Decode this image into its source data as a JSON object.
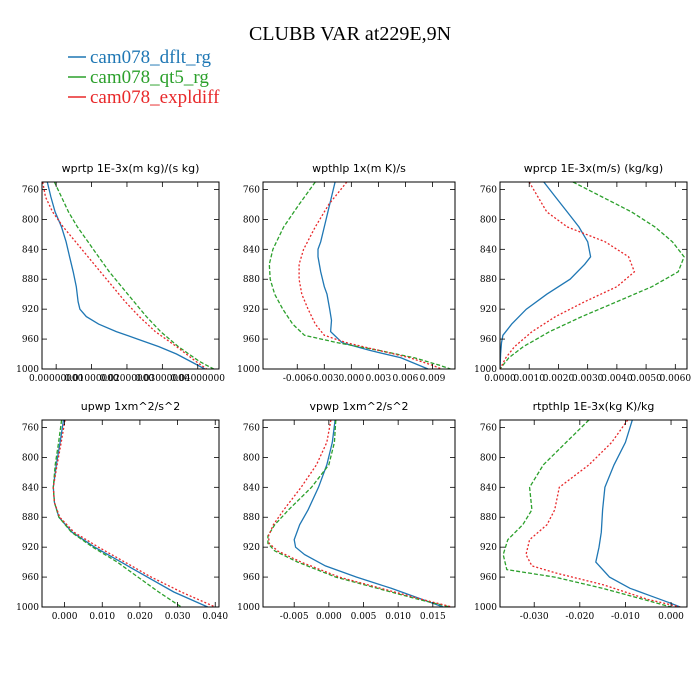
{
  "figure_title": "CLUBB VAR at229E,9N",
  "legend": [
    {
      "label": "cam078_dflt_rg",
      "color": "#1f77b4"
    },
    {
      "label": "cam078_qt5_rg",
      "color": "#2ca02c"
    },
    {
      "label": "cam078_expldiff",
      "color": "#e8282a"
    }
  ],
  "chart_data": [
    {
      "type": "line",
      "title": "wprtp  1E-3x(m kg)/(s kg)",
      "xlim": [
        -0.004,
        0.046
      ],
      "ylim": [
        1000,
        750
      ],
      "y_ticks": [
        760,
        800,
        840,
        880,
        920,
        960,
        1000
      ],
      "x_ticks": [
        {
          "v": 0.0,
          "label": "0.00000000"
        },
        {
          "v": 0.01,
          "label": "0.01000000"
        },
        {
          "v": 0.02,
          "label": "0.02000000"
        },
        {
          "v": 0.03,
          "label": "0.03000000"
        },
        {
          "v": 0.04,
          "label": "0.04000000"
        }
      ],
      "series": [
        {
          "name": "cam078_dflt_rg",
          "p": [
            750,
            770,
            790,
            810,
            830,
            850,
            870,
            890,
            910,
            920,
            930,
            940,
            950,
            960,
            970,
            980,
            990,
            1000
          ],
          "x": [
            -0.0025,
            -0.0015,
            -0.0003,
            0.0015,
            0.0028,
            0.0038,
            0.0048,
            0.0057,
            0.0062,
            0.0067,
            0.0085,
            0.012,
            0.017,
            0.023,
            0.029,
            0.034,
            0.038,
            0.042
          ]
        },
        {
          "name": "cam078_qt5_rg",
          "p": [
            750,
            770,
            790,
            810,
            830,
            850,
            870,
            890,
            910,
            930,
            950,
            970,
            990,
            1000
          ],
          "x": [
            -0.0005,
            0.0015,
            0.0035,
            0.006,
            0.009,
            0.012,
            0.015,
            0.0185,
            0.022,
            0.0255,
            0.0295,
            0.0345,
            0.0405,
            0.0445
          ]
        },
        {
          "name": "cam078_expldiff",
          "p": [
            750,
            770,
            790,
            810,
            830,
            850,
            870,
            890,
            910,
            930,
            950,
            970,
            990,
            1000
          ],
          "x": [
            -0.0038,
            -0.003,
            -0.001,
            0.002,
            0.0055,
            0.009,
            0.0125,
            0.016,
            0.0195,
            0.0235,
            0.028,
            0.034,
            0.0395,
            0.0425
          ]
        }
      ]
    },
    {
      "type": "line",
      "title": "wpthlp  1x(m K)/s",
      "xlim": [
        -0.0098,
        0.0115
      ],
      "ylim": [
        1000,
        750
      ],
      "y_ticks": [
        760,
        800,
        840,
        880,
        920,
        960,
        1000
      ],
      "x_ticks": [
        {
          "v": -0.006,
          "label": "-0.006"
        },
        {
          "v": -0.003,
          "label": "-0.003"
        },
        {
          "v": 0.0,
          "label": "0.000"
        },
        {
          "v": 0.003,
          "label": "0.003"
        },
        {
          "v": 0.006,
          "label": "0.006"
        },
        {
          "v": 0.009,
          "label": "0.009"
        }
      ],
      "series": [
        {
          "name": "cam078_dflt_rg",
          "p": [
            750,
            780,
            810,
            830,
            840,
            850,
            870,
            890,
            900,
            920,
            935,
            950,
            965,
            975,
            985,
            1000
          ],
          "x": [
            -0.0018,
            -0.0024,
            -0.003,
            -0.0034,
            -0.0037,
            -0.0037,
            -0.0034,
            -0.003,
            -0.0027,
            -0.0024,
            -0.0022,
            -0.0023,
            -0.001,
            0.002,
            0.0055,
            0.0085
          ]
        },
        {
          "name": "cam078_qt5_rg",
          "p": [
            750,
            780,
            810,
            840,
            860,
            880,
            900,
            920,
            940,
            955,
            965,
            975,
            985,
            995,
            1000
          ],
          "x": [
            -0.004,
            -0.0058,
            -0.0075,
            -0.0087,
            -0.0091,
            -0.009,
            -0.0085,
            -0.0076,
            -0.0065,
            -0.0052,
            -0.0015,
            0.003,
            0.007,
            0.0098,
            0.011
          ]
        },
        {
          "name": "cam078_expldiff",
          "p": [
            750,
            780,
            810,
            840,
            860,
            880,
            900,
            920,
            940,
            955,
            965,
            975,
            985,
            995,
            1000
          ],
          "x": [
            -0.0005,
            -0.0025,
            -0.004,
            -0.0053,
            -0.0058,
            -0.0058,
            -0.0055,
            -0.0048,
            -0.004,
            -0.003,
            -0.0005,
            0.003,
            0.0065,
            0.009,
            0.01
          ]
        }
      ]
    },
    {
      "type": "line",
      "title": "wprcp  1E-3x(m/s) (kg/kg)",
      "xlim": [
        0,
        0.0064
      ],
      "ylim": [
        1000,
        750
      ],
      "y_ticks": [
        760,
        800,
        840,
        880,
        920,
        960,
        1000
      ],
      "x_ticks": [
        {
          "v": 0,
          "label": "0.0000"
        },
        {
          "v": 0.001,
          "label": "0.0010"
        },
        {
          "v": 0.002,
          "label": "0.0020"
        },
        {
          "v": 0.003,
          "label": "0.0030"
        },
        {
          "v": 0.004,
          "label": "0.0040"
        },
        {
          "v": 0.005,
          "label": "0.0050"
        },
        {
          "v": 0.006,
          "label": "0.0060"
        }
      ],
      "series": [
        {
          "name": "cam078_dflt_rg",
          "p": [
            750,
            770,
            790,
            810,
            830,
            850,
            860,
            880,
            900,
            920,
            940,
            955,
            965,
            980,
            1000
          ],
          "x": [
            0.0015,
            0.0019,
            0.0023,
            0.0027,
            0.003,
            0.0031,
            0.0029,
            0.0024,
            0.0016,
            0.0009,
            0.0004,
            0.0001,
            5e-05,
            2e-05,
            0
          ]
        },
        {
          "name": "cam078_qt5_rg",
          "p": [
            750,
            770,
            790,
            810,
            830,
            850,
            870,
            890,
            910,
            930,
            950,
            970,
            985,
            1000
          ],
          "x": [
            0.0025,
            0.0035,
            0.0045,
            0.0053,
            0.0059,
            0.0063,
            0.0061,
            0.0052,
            0.004,
            0.0028,
            0.0017,
            0.0008,
            0.0003,
            0
          ]
        },
        {
          "name": "cam078_expldiff",
          "p": [
            750,
            770,
            790,
            810,
            830,
            850,
            870,
            890,
            910,
            930,
            950,
            970,
            985,
            1000
          ],
          "x": [
            0.001,
            0.0013,
            0.0016,
            0.0023,
            0.0036,
            0.0044,
            0.0046,
            0.004,
            0.0029,
            0.0019,
            0.0011,
            0.0005,
            0.0002,
            0
          ]
        }
      ]
    },
    {
      "type": "line",
      "title": "upwp  1xm^2/s^2",
      "xlim": [
        -0.006,
        0.041
      ],
      "ylim": [
        1000,
        750
      ],
      "y_ticks": [
        760,
        800,
        840,
        880,
        920,
        960,
        1000
      ],
      "x_ticks": [
        {
          "v": 0.0,
          "label": "0.000"
        },
        {
          "v": 0.01,
          "label": "0.010"
        },
        {
          "v": 0.02,
          "label": "0.020"
        },
        {
          "v": 0.03,
          "label": "0.030"
        },
        {
          "v": 0.04,
          "label": "0.040"
        }
      ],
      "series": [
        {
          "name": "cam078_dflt_rg",
          "p": [
            750,
            780,
            810,
            840,
            860,
            880,
            900,
            920,
            940,
            960,
            980,
            1000
          ],
          "x": [
            -0.0003,
            -0.0012,
            -0.0022,
            -0.003,
            -0.0027,
            -0.0015,
            0.002,
            0.008,
            0.015,
            0.022,
            0.029,
            0.038
          ]
        },
        {
          "name": "cam078_qt5_rg",
          "p": [
            750,
            780,
            810,
            840,
            860,
            880,
            900,
            920,
            940,
            960,
            980,
            1000
          ],
          "x": [
            -0.0008,
            -0.0016,
            -0.0025,
            -0.003,
            -0.0027,
            -0.0015,
            0.0018,
            0.0075,
            0.014,
            0.0195,
            0.025,
            0.031
          ]
        },
        {
          "name": "cam078_expldiff",
          "p": [
            750,
            780,
            810,
            840,
            860,
            880,
            900,
            920,
            940,
            960,
            980,
            1000
          ],
          "x": [
            0.0001,
            -0.0009,
            -0.002,
            -0.003,
            -0.0027,
            -0.0013,
            0.0025,
            0.009,
            0.016,
            0.023,
            0.031,
            0.04
          ]
        }
      ]
    },
    {
      "type": "line",
      "title": "vpwp  1xm^2/s^2",
      "xlim": [
        -0.0095,
        0.0182
      ],
      "ylim": [
        1000,
        750
      ],
      "y_ticks": [
        760,
        800,
        840,
        880,
        920,
        960,
        1000
      ],
      "x_ticks": [
        {
          "v": -0.005,
          "label": "-0.005"
        },
        {
          "v": 0.0,
          "label": "0.000"
        },
        {
          "v": 0.005,
          "label": "0.005"
        },
        {
          "v": 0.01,
          "label": "0.010"
        },
        {
          "v": 0.015,
          "label": "0.015"
        }
      ],
      "series": [
        {
          "name": "cam078_dflt_rg",
          "p": [
            750,
            780,
            810,
            840,
            870,
            890,
            910,
            920,
            930,
            945,
            960,
            975,
            990,
            1000
          ],
          "x": [
            0.0009,
            0.0005,
            -0.0003,
            -0.0015,
            -0.003,
            -0.0042,
            -0.005,
            -0.0048,
            -0.0035,
            -0.0005,
            0.004,
            0.009,
            0.0135,
            0.0165
          ]
        },
        {
          "name": "cam078_qt5_rg",
          "p": [
            750,
            780,
            810,
            840,
            870,
            890,
            905,
            915,
            925,
            940,
            960,
            975,
            990,
            1000
          ],
          "x": [
            0.001,
            0.0008,
            0.0,
            -0.0025,
            -0.0058,
            -0.0078,
            -0.0088,
            -0.0088,
            -0.0078,
            -0.0045,
            0.001,
            0.007,
            0.013,
            0.0175
          ]
        },
        {
          "name": "cam078_expldiff",
          "p": [
            750,
            780,
            810,
            840,
            870,
            890,
            905,
            915,
            925,
            940,
            960,
            975,
            990,
            1000
          ],
          "x": [
            0.0003,
            -0.0003,
            -0.0018,
            -0.004,
            -0.0065,
            -0.008,
            -0.0087,
            -0.0086,
            -0.0074,
            -0.004,
            0.0015,
            0.0075,
            0.0135,
            0.0178
          ]
        }
      ]
    },
    {
      "type": "line",
      "title": "rtpthlp  1E-3x(kg K)/kg",
      "xlim": [
        -0.0375,
        0.0035
      ],
      "ylim": [
        1000,
        750
      ],
      "y_ticks": [
        760,
        800,
        840,
        880,
        920,
        960,
        1000
      ],
      "x_ticks": [
        {
          "v": -0.03,
          "label": "-0.030"
        },
        {
          "v": -0.02,
          "label": "-0.020"
        },
        {
          "v": -0.01,
          "label": "-0.010"
        },
        {
          "v": 0.0,
          "label": "0.000"
        }
      ],
      "series": [
        {
          "name": "cam078_dflt_rg",
          "p": [
            750,
            780,
            810,
            840,
            870,
            900,
            920,
            940,
            960,
            975,
            985,
            995,
            1000
          ],
          "x": [
            -0.0085,
            -0.01,
            -0.0125,
            -0.0145,
            -0.015,
            -0.0153,
            -0.0158,
            -0.0165,
            -0.0135,
            -0.009,
            -0.0045,
            0.0,
            0.002
          ]
        },
        {
          "name": "cam078_qt5_rg",
          "p": [
            750,
            780,
            810,
            840,
            870,
            890,
            910,
            930,
            950,
            960,
            975,
            990,
            1000
          ],
          "x": [
            -0.018,
            -0.023,
            -0.028,
            -0.031,
            -0.0305,
            -0.0325,
            -0.0358,
            -0.0368,
            -0.036,
            -0.0255,
            -0.015,
            -0.006,
            0.0
          ]
        },
        {
          "name": "cam078_expldiff",
          "p": [
            750,
            780,
            810,
            840,
            870,
            890,
            910,
            930,
            945,
            955,
            970,
            990,
            1000
          ],
          "x": [
            -0.0095,
            -0.013,
            -0.018,
            -0.0245,
            -0.0255,
            -0.0272,
            -0.031,
            -0.0318,
            -0.0305,
            -0.025,
            -0.015,
            -0.005,
            0.002
          ]
        }
      ]
    }
  ]
}
